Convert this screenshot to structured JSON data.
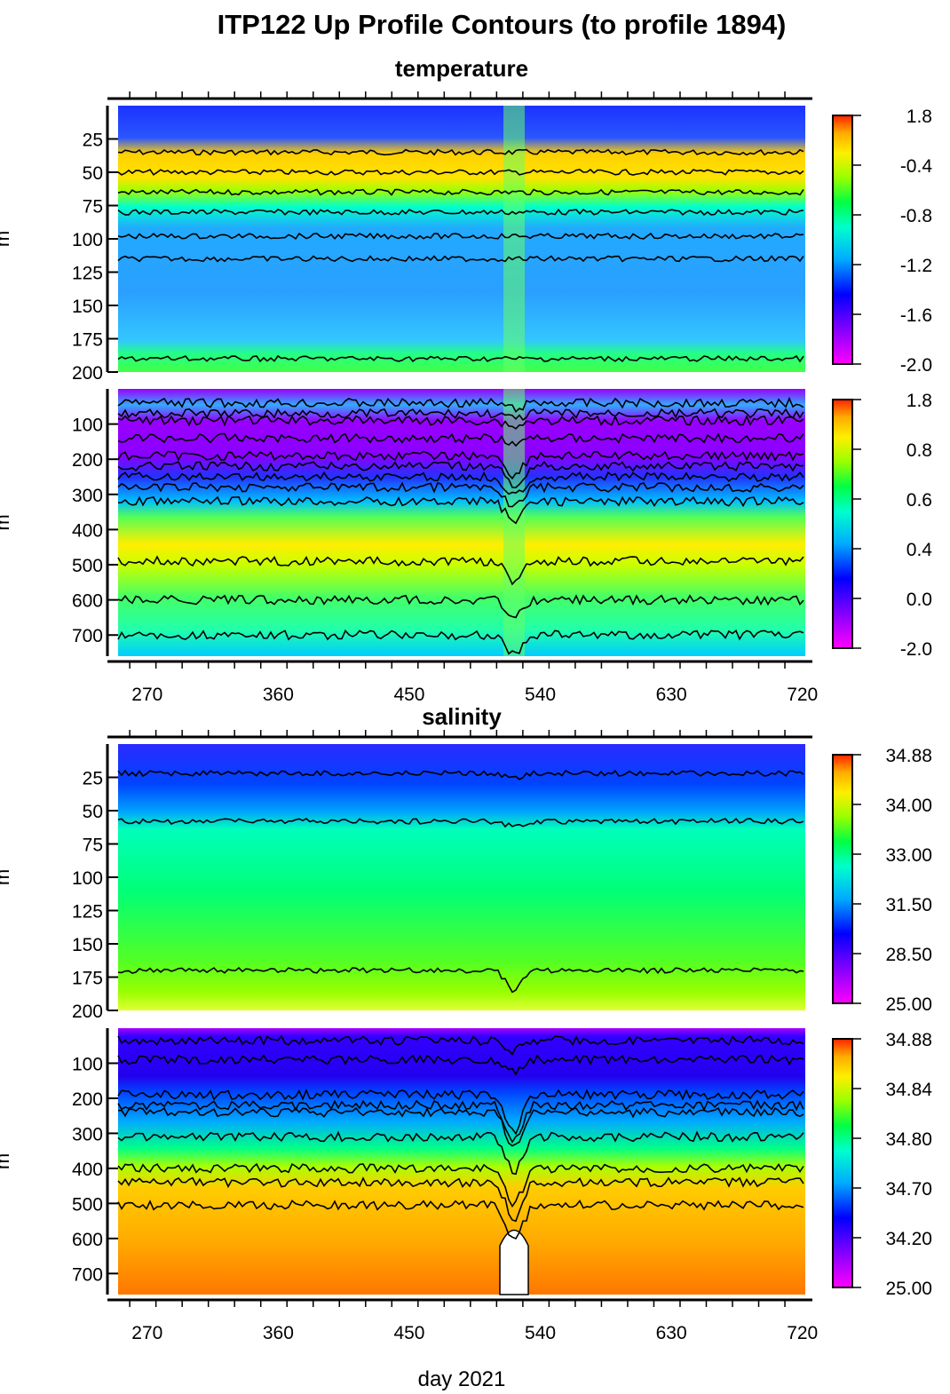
{
  "title": "ITP122 Up Profile Contours (to profile 1894)",
  "sections": {
    "temperature": "temperature",
    "salinity": "salinity"
  },
  "xlabel": "day 2021",
  "colors": {
    "scale": [
      "#ff00ff",
      "#7a00ff",
      "#0000ff",
      "#00aaff",
      "#00ffdd",
      "#00ff66",
      "#88ff00",
      "#ffee00",
      "#ffaa00",
      "#ff3300"
    ]
  },
  "chart_data": [
    {
      "type": "heatmap",
      "name": "temperature-upper",
      "xlim": [
        250,
        722
      ],
      "x_ticks": [
        270,
        360,
        450,
        540,
        630,
        720
      ],
      "y_ticks": [
        25,
        50,
        75,
        100,
        125,
        150,
        175,
        200
      ],
      "ylim": [
        0,
        200
      ],
      "ylabel": "m",
      "colorbar": [
        "1.8",
        "-0.4",
        "-0.8",
        "-1.2",
        "-1.6",
        "-2.0"
      ]
    },
    {
      "type": "heatmap",
      "name": "temperature-lower",
      "xlim": [
        250,
        722
      ],
      "x_ticks": [
        270,
        360,
        450,
        540,
        630,
        720
      ],
      "y_ticks": [
        100,
        200,
        300,
        400,
        500,
        600,
        700
      ],
      "ylim": [
        0,
        760
      ],
      "ylabel": "m",
      "colorbar": [
        "1.8",
        "0.8",
        "0.6",
        "0.4",
        "0.0",
        "-2.0"
      ]
    },
    {
      "type": "heatmap",
      "name": "salinity-upper",
      "xlim": [
        250,
        722
      ],
      "x_ticks": [
        270,
        360,
        450,
        540,
        630,
        720
      ],
      "y_ticks": [
        25,
        50,
        75,
        100,
        125,
        150,
        175,
        200
      ],
      "ylim": [
        0,
        200
      ],
      "ylabel": "m",
      "colorbar": [
        "34.88",
        "34.00",
        "33.00",
        "31.50",
        "28.50",
        "25.00"
      ]
    },
    {
      "type": "heatmap",
      "name": "salinity-lower",
      "xlim": [
        250,
        722
      ],
      "x_ticks": [
        270,
        360,
        450,
        540,
        630,
        720
      ],
      "y_ticks": [
        100,
        200,
        300,
        400,
        500,
        600,
        700
      ],
      "ylim": [
        0,
        760
      ],
      "ylabel": "m",
      "colorbar": [
        "34.88",
        "34.84",
        "34.80",
        "34.70",
        "34.20",
        "25.00"
      ]
    }
  ]
}
